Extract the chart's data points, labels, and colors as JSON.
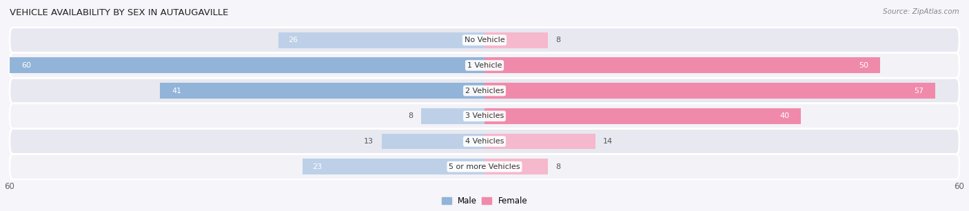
{
  "title": "VEHICLE AVAILABILITY BY SEX IN AUTAUGAVILLE",
  "source": "Source: ZipAtlas.com",
  "categories": [
    "No Vehicle",
    "1 Vehicle",
    "2 Vehicles",
    "3 Vehicles",
    "4 Vehicles",
    "5 or more Vehicles"
  ],
  "male_values": [
    26,
    60,
    41,
    8,
    13,
    23
  ],
  "female_values": [
    8,
    50,
    57,
    40,
    14,
    8
  ],
  "male_color": "#92b4d8",
  "female_color": "#f08aab",
  "male_light_color": "#bdd0e8",
  "female_light_color": "#f5b8cc",
  "bg_light": "#f2f2f7",
  "bg_dark": "#e8e8f0",
  "bar_height": 0.62,
  "xlim": 60,
  "title_fontsize": 9.5,
  "label_fontsize": 8,
  "tick_fontsize": 8.5,
  "source_fontsize": 7.5
}
